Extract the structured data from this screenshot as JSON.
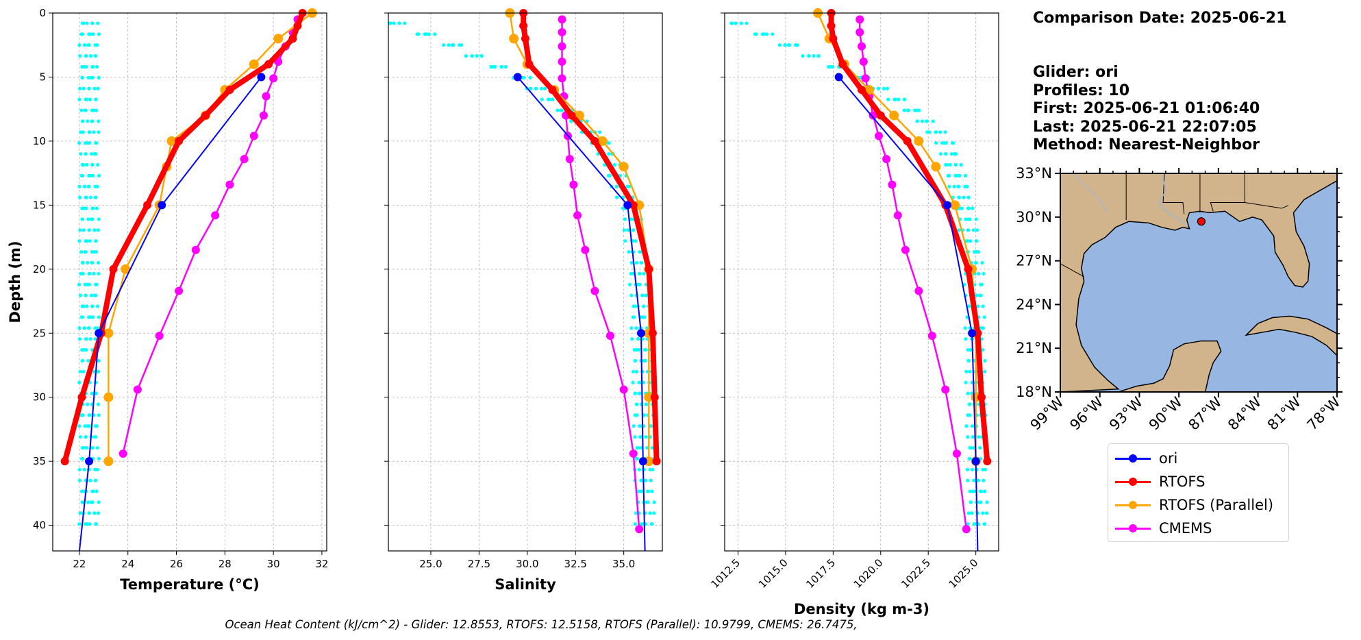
{
  "info": {
    "comparison_date": "Comparison Date: 2025-06-21",
    "glider": "Glider: ori",
    "profiles": "Profiles: 10",
    "first": "First: 2025-06-21 01:06:40",
    "last": "Last: 2025-06-21 22:07:05",
    "method": "Method: Nearest-Neighbor"
  },
  "footnote": "Ocean Heat Content (kJ/cm^2) - Glider: 12.8553,  RTOFS: 12.5158,  RTOFS (Parallel): 10.9799,  CMEMS: 26.7475,",
  "colors": {
    "ori": "#0000ff",
    "rtofs": "#ff0000",
    "rtofs_parallel": "#ffa500",
    "cmems": "#ff00ff",
    "glider_raw": "#00ffff",
    "ocean": "#97b6e1",
    "land": "#d2b48c"
  },
  "legend": [
    {
      "label": "ori",
      "color": "#0000ff"
    },
    {
      "label": "RTOFS",
      "color": "#ff0000"
    },
    {
      "label": "RTOFS (Parallel)",
      "color": "#ffa500"
    },
    {
      "label": "CMEMS",
      "color": "#ff00ff"
    }
  ],
  "chart_data": [
    {
      "type": "line",
      "xlabel": "Temperature (°C)",
      "ylabel": "Depth (m)",
      "xlim": [
        20.9,
        32.2
      ],
      "ylim": [
        42,
        0
      ],
      "y_inverted": true,
      "xticks": [
        22,
        24,
        26,
        28,
        30,
        32
      ],
      "yticks": [
        0,
        5,
        10,
        15,
        20,
        25,
        30,
        35,
        40
      ],
      "grid": true,
      "series": [
        {
          "name": "ori",
          "x": [
            29.5,
            25.4,
            22.8,
            22.4,
            22.0
          ],
          "y": [
            5,
            15,
            25,
            35,
            42
          ]
        },
        {
          "name": "RTOFS",
          "x": [
            31.2,
            31.0,
            30.8,
            29.8,
            28.2,
            27.2,
            26.1,
            24.8,
            23.4,
            22.9,
            22.1,
            21.4
          ],
          "y": [
            0,
            1,
            2,
            4,
            6,
            8,
            10,
            15,
            20,
            25,
            30,
            35
          ]
        },
        {
          "name": "RTOFS (Parallel)",
          "x": [
            31.6,
            30.2,
            29.2,
            28.0,
            27.2,
            25.8,
            25.6,
            25.3,
            23.9,
            23.2,
            23.2,
            23.2
          ],
          "y": [
            0,
            2,
            4,
            6,
            8,
            10,
            12,
            15,
            20,
            25,
            30,
            35
          ]
        },
        {
          "name": "CMEMS",
          "x": [
            31.0,
            30.8,
            30.5,
            30.2,
            30.0,
            29.7,
            29.6,
            29.2,
            28.8,
            28.2,
            27.6,
            26.8,
            26.1,
            25.3,
            24.4,
            23.8
          ],
          "y": [
            0.5,
            1.5,
            2.6,
            3.8,
            5.1,
            6.5,
            8.0,
            9.6,
            11.4,
            13.4,
            15.8,
            18.5,
            21.7,
            25.2,
            29.4,
            34.4
          ]
        }
      ],
      "raw_glider": {
        "x": [
          22.4,
          22.6,
          22.9,
          23.4,
          24.6,
          26.0,
          28.0,
          29.6,
          30.7,
          31.2
        ],
        "y": [
          40,
          36,
          30,
          25,
          20,
          15,
          10,
          6,
          3,
          1
        ]
      }
    },
    {
      "type": "line",
      "xlabel": "Salinity",
      "xlim": [
        22.8,
        37.0
      ],
      "ylim": [
        42,
        0
      ],
      "y_inverted": true,
      "xticks": [
        25.0,
        27.5,
        30.0,
        32.5,
        35.0
      ],
      "grid": true,
      "series": [
        {
          "name": "ori",
          "x": [
            29.5,
            35.2,
            35.9,
            36.0,
            36.1
          ],
          "y": [
            5,
            15,
            25,
            35,
            42
          ]
        },
        {
          "name": "RTOFS",
          "x": [
            29.8,
            29.8,
            29.9,
            30.1,
            31.3,
            32.3,
            33.5,
            35.5,
            36.3,
            36.5,
            36.6,
            36.7
          ],
          "y": [
            0,
            1,
            2,
            4,
            6,
            8,
            10,
            15,
            20,
            25,
            30,
            35
          ]
        },
        {
          "name": "RTOFS (Parallel)",
          "x": [
            29.1,
            29.3,
            30.0,
            31.4,
            32.7,
            33.9,
            35.0,
            35.8,
            36.3,
            36.3,
            36.3,
            36.3
          ],
          "y": [
            0,
            2,
            4,
            6,
            8,
            10,
            12,
            15,
            20,
            25,
            30,
            35
          ]
        },
        {
          "name": "CMEMS",
          "x": [
            31.8,
            31.8,
            31.8,
            31.8,
            31.8,
            31.9,
            32.0,
            32.1,
            32.2,
            32.4,
            32.6,
            33.0,
            33.5,
            34.3,
            35.0,
            35.5,
            35.8
          ],
          "y": [
            0.5,
            1.5,
            2.6,
            3.8,
            5.1,
            6.5,
            8.0,
            9.6,
            11.4,
            13.4,
            15.8,
            18.5,
            21.7,
            25.2,
            29.4,
            34.4,
            40.3
          ]
        }
      ],
      "raw_glider": {
        "x": [
          23.2,
          25.5,
          27.5,
          29.6,
          31.5,
          33.8,
          35.3,
          35.8,
          36.0,
          36.1
        ],
        "y": [
          1,
          2,
          3.5,
          5,
          7,
          10,
          15,
          20,
          30,
          40
        ]
      }
    },
    {
      "type": "line",
      "xlabel": "Density (kg m-3)",
      "xlim": [
        1011.8,
        1026.2
      ],
      "ylim": [
        42,
        0
      ],
      "y_inverted": true,
      "xticks": [
        1012.5,
        1015.0,
        1017.5,
        1020.0,
        1022.5,
        1025.0
      ],
      "grid": true,
      "series": [
        {
          "name": "ori",
          "x": [
            1017.8,
            1023.5,
            1024.8,
            1025.0,
            1025.1
          ],
          "y": [
            5,
            15,
            25,
            35,
            42
          ]
        },
        {
          "name": "RTOFS",
          "x": [
            1017.4,
            1017.4,
            1017.5,
            1018.0,
            1019.0,
            1020.0,
            1021.4,
            1023.4,
            1024.6,
            1025.1,
            1025.3,
            1025.6
          ],
          "y": [
            0,
            1,
            2,
            4,
            6,
            8,
            10,
            15,
            20,
            25,
            30,
            35
          ]
        },
        {
          "name": "RTOFS (Parallel)",
          "x": [
            1016.7,
            1017.3,
            1018.1,
            1019.4,
            1020.7,
            1022.0,
            1022.9,
            1023.9,
            1024.8,
            1025.0,
            1025.0,
            1025.0
          ],
          "y": [
            0,
            2,
            4,
            6,
            8,
            10,
            12,
            15,
            20,
            25,
            30,
            35
          ]
        },
        {
          "name": "CMEMS",
          "x": [
            1018.9,
            1018.9,
            1019.0,
            1019.1,
            1019.2,
            1019.4,
            1019.6,
            1019.9,
            1020.3,
            1020.6,
            1020.9,
            1021.3,
            1022.0,
            1022.7,
            1023.4,
            1024.0,
            1024.5
          ],
          "y": [
            0.5,
            1.5,
            2.6,
            3.8,
            5.1,
            6.5,
            8.0,
            9.6,
            11.4,
            13.4,
            15.8,
            18.5,
            21.7,
            25.2,
            29.4,
            34.4,
            40.3
          ]
        }
      ],
      "raw_glider": {
        "x": [
          1012.5,
          1014.5,
          1016.6,
          1018.8,
          1021.2,
          1023.4,
          1024.4,
          1024.9,
          1025.0,
          1025.1
        ],
        "y": [
          1,
          2,
          3.5,
          5,
          7,
          10,
          15,
          20,
          30,
          40
        ]
      }
    },
    {
      "type": "map",
      "lon_range": [
        -99,
        -78
      ],
      "lat_range": [
        18,
        33
      ],
      "lat_ticks": [
        "33°N",
        "30°N",
        "27°N",
        "24°N",
        "21°N",
        "18°N"
      ],
      "lon_ticks": [
        "99°W",
        "96°W",
        "93°W",
        "90°W",
        "87°W",
        "84°W",
        "81°W",
        "78°W"
      ],
      "glider_position": {
        "lon": -88.3,
        "lat": 29.7
      }
    }
  ]
}
